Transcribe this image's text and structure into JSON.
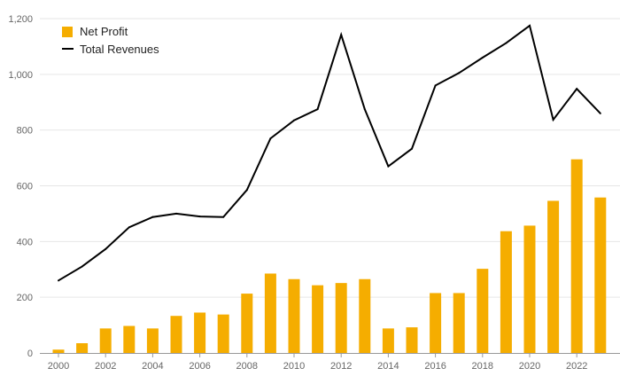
{
  "colors": {
    "profit": "#F5AD00",
    "revenue": "#000000",
    "grid": "#e6e6e6",
    "axis": "#999999"
  },
  "legend": {
    "profit_label": "Net Profit",
    "revenue_label": "Total Revenues"
  },
  "chart_data": {
    "type": "bar",
    "x": [
      2000,
      2001,
      2002,
      2003,
      2004,
      2005,
      2006,
      2007,
      2008,
      2009,
      2010,
      2011,
      2012,
      2013,
      2014,
      2015,
      2016,
      2017,
      2018,
      2019,
      2020,
      2021,
      2022,
      2023
    ],
    "x_tick_labels": [
      "2000",
      "2002",
      "2004",
      "2006",
      "2008",
      "2010",
      "2012",
      "2014",
      "2016",
      "2018",
      "2020",
      "2022"
    ],
    "y_tick_labels": [
      "0",
      "200",
      "400",
      "600",
      "800",
      "1,000",
      "1,200"
    ],
    "ylim": [
      0,
      1200
    ],
    "grid": true,
    "legend_position": "top-left",
    "series": [
      {
        "name": "Net Profit",
        "type": "bar",
        "values": [
          12,
          35,
          88,
          97,
          88,
          133,
          145,
          138,
          213,
          285,
          265,
          243,
          251,
          265,
          88,
          92,
          215,
          215,
          302,
          437,
          457,
          546,
          695,
          558
        ]
      },
      {
        "name": "Total Revenues",
        "type": "line",
        "values": [
          260,
          310,
          373,
          451,
          488,
          500,
          490,
          488,
          585,
          770,
          835,
          875,
          1142,
          875,
          670,
          733,
          960,
          1005,
          1060,
          1112,
          1175,
          837,
          948,
          860
        ]
      }
    ]
  }
}
